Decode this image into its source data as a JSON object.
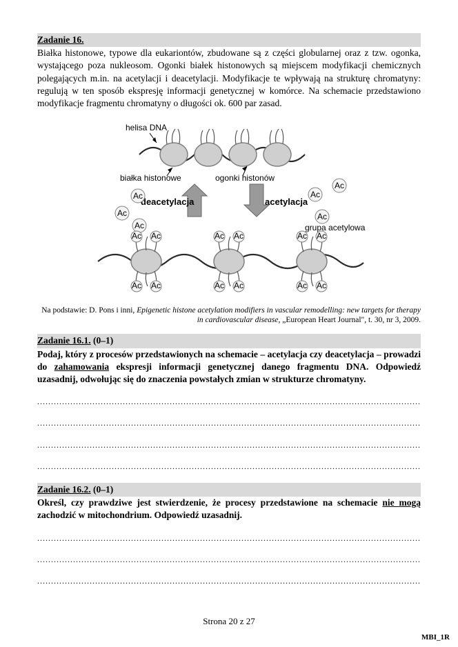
{
  "task16": {
    "header": "Zadanie 16.",
    "body": "Białka histonowe, typowe dla eukariontów, zbudowane są z części globularnej oraz z tzw. ogonka, wystającego poza nukleosom. Ogonki białek histonowych są miejscem modyfikacji chemicznych polegających m.in. na acetylacji i deacetylacji. Modyfikacje te wpływają na strukturę chromatyny: regulują w ten sposób ekspresję informacji genetycznej w komórce. Na schemacie przedstawiono modyfikacje fragmentu chromatyny o długości ok. 600 par zasad."
  },
  "diagram": {
    "label_helisa": "helisa DNA",
    "label_bialka": "białka histonowe",
    "label_ogonki": "ogonki histonów",
    "label_deac": "deacetylacja",
    "label_acet": "acetylacja",
    "label_grupa": "grupa acetylowa",
    "ac": "Ac",
    "colors": {
      "histone_fill": "#cfcfcf",
      "histone_stroke": "#808080",
      "dna_stroke": "#2a2a2a",
      "arrow_fill": "#9a9a9a",
      "ac_fill": "#f4f4f4",
      "ac_stroke": "#808080"
    }
  },
  "citation": {
    "prefix": "Na podstawie: D. Pons i inni, ",
    "ital": "Epigenetic histone acetylation modifiers in vascular remodelling: new targets for therapy in cardiovascular disease",
    "suffix": ", „European Heart Journal\", t. 30, nr 3, 2009."
  },
  "task16_1": {
    "header_u": "Zadanie 16.1.",
    "header_rest": " (0–1)",
    "question_p1": "Podaj, który z procesów przedstawionych na schemacie – acetylacja czy deacetylacja – prowadzi do ",
    "question_u": "zahamowania",
    "question_p2": " ekspresji informacji genetycznej danego fragmentu DNA. Odpowiedź uzasadnij, odwołując się do znaczenia powstałych zmian w strukturze chromatyny.",
    "lines": 4
  },
  "task16_2": {
    "header_u": "Zadanie 16.2.",
    "header_rest": " (0–1)",
    "question_p1": "Określ, czy prawdziwe jest stwierdzenie, że procesy przedstawione na schemacie ",
    "question_u": "nie mogą",
    "question_p2": " zachodzić w mitochondrium. Odpowiedź uzasadnij.",
    "lines": 3
  },
  "footer": {
    "page": "Strona 20 z 27",
    "docid": "MBI_1R"
  }
}
